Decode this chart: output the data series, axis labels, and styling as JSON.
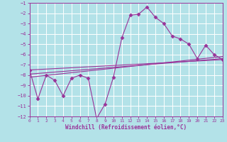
{
  "xlabel": "Windchill (Refroidissement éolien,°C)",
  "background_color": "#b3e2e8",
  "grid_color": "#aadddd",
  "line_color": "#993399",
  "xlim": [
    0,
    23
  ],
  "ylim": [
    -12,
    -1
  ],
  "xticks": [
    0,
    1,
    2,
    3,
    4,
    5,
    6,
    7,
    8,
    9,
    10,
    11,
    12,
    13,
    14,
    15,
    16,
    17,
    18,
    19,
    20,
    21,
    22,
    23
  ],
  "yticks": [
    -12,
    -11,
    -10,
    -9,
    -8,
    -7,
    -6,
    -5,
    -4,
    -3,
    -2,
    -1
  ],
  "series1_x": [
    0,
    1,
    2,
    3,
    4,
    5,
    6,
    7,
    8,
    9,
    10,
    11,
    12,
    13,
    14,
    15,
    16,
    17,
    18,
    19,
    20,
    21,
    22,
    23
  ],
  "series1_y": [
    -7.5,
    -10.3,
    -8.0,
    -8.5,
    -10.0,
    -8.3,
    -8.0,
    -8.3,
    -12.2,
    -10.8,
    -8.2,
    -4.4,
    -2.2,
    -2.1,
    -1.4,
    -2.4,
    -3.0,
    -4.2,
    -4.5,
    -5.0,
    -6.4,
    -5.1,
    -6.0,
    -6.5
  ],
  "reg_lines": [
    {
      "x0": 0,
      "y0": -7.5,
      "x1": 23,
      "y1": -6.5
    },
    {
      "x0": 0,
      "y0": -7.9,
      "x1": 23,
      "y1": -6.4
    },
    {
      "x0": 0,
      "y0": -8.2,
      "x1": 23,
      "y1": -6.2
    }
  ]
}
